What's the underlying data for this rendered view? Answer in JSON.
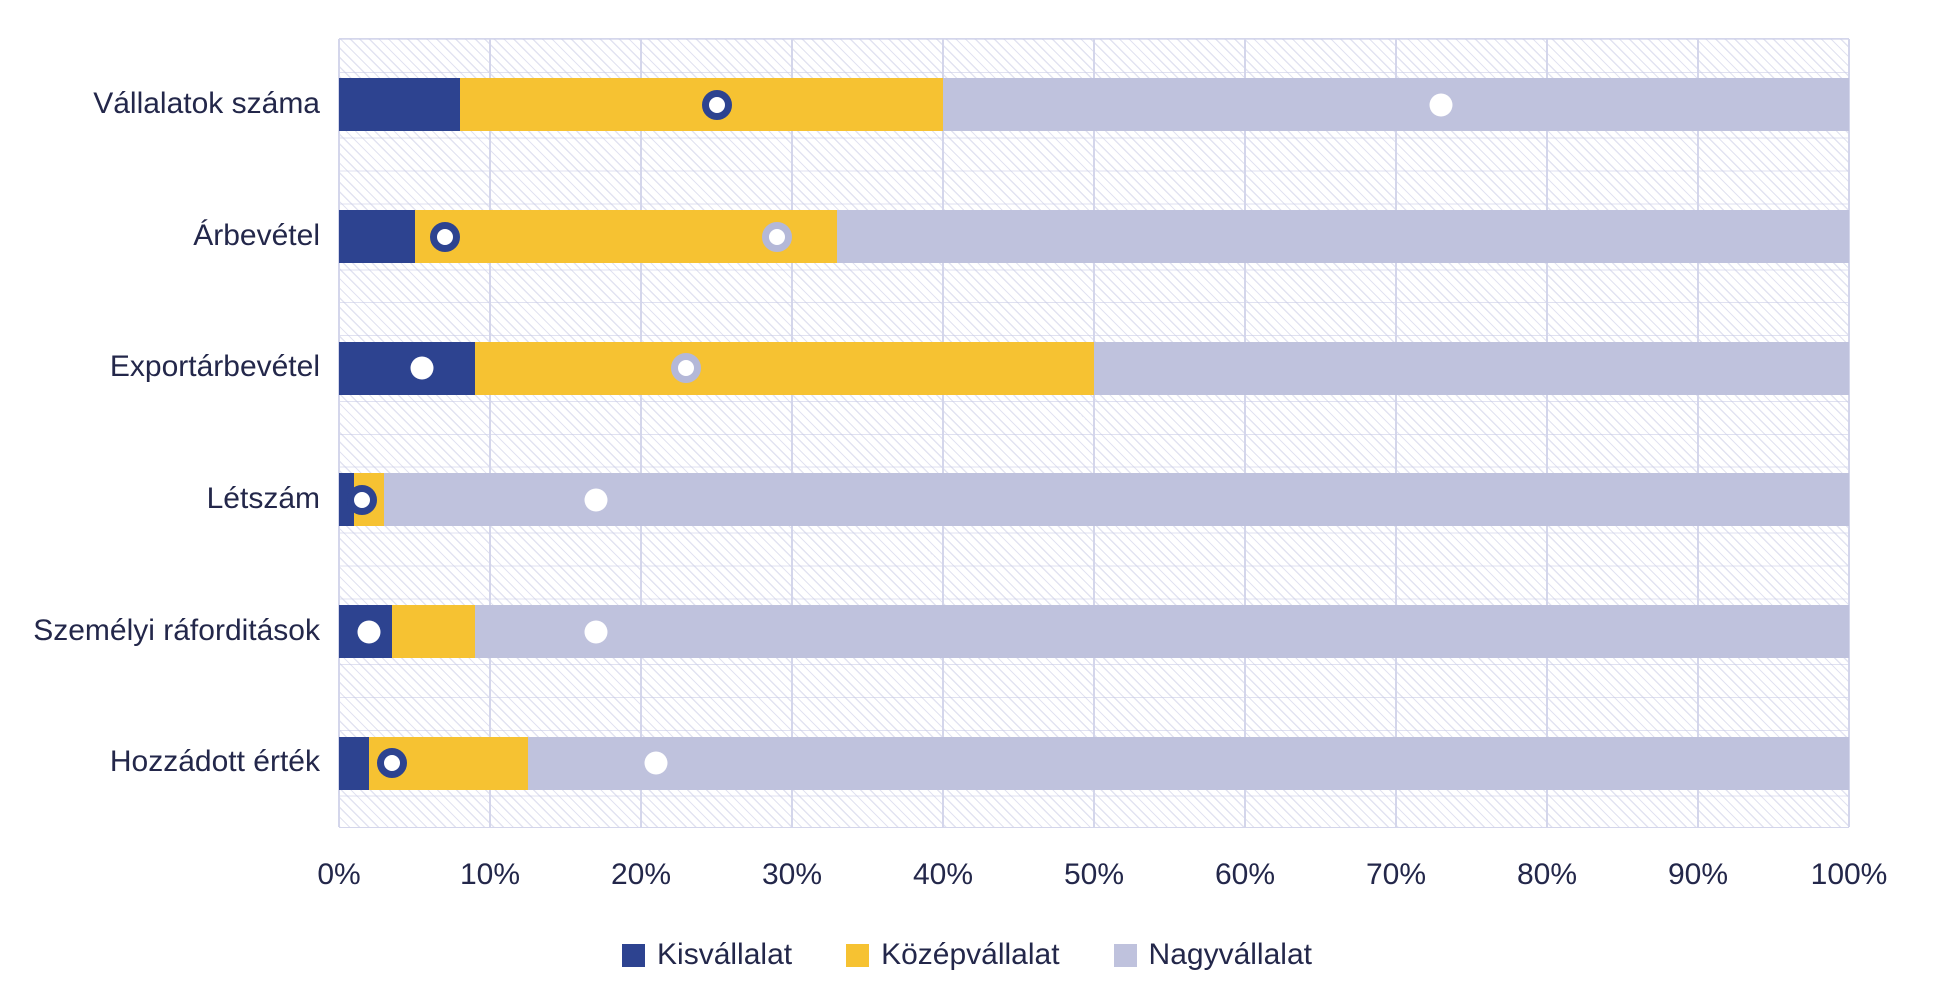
{
  "colors": {
    "small": "#2d4390",
    "medium": "#f6c232",
    "large": "#bfc2dd",
    "gridline": "#d4d6eb",
    "text": "#23274a",
    "marker_fill": "#ffffff",
    "marker_ring_navy": "#2d4390",
    "marker_ring_lavender": "#b4b8d8"
  },
  "chart_data": {
    "type": "bar",
    "orientation": "horizontal",
    "stacked": true,
    "unit": "%",
    "categories": [
      "Vállalatok száma",
      "Árbevétel",
      "Exportárbevétel",
      "Létszám",
      "Személyi ráforditások",
      "Hozzádott érték"
    ],
    "series": [
      {
        "name": "Kisvállalat",
        "color": "#2d4390",
        "values": [
          8,
          5,
          9,
          1,
          3.5,
          2
        ]
      },
      {
        "name": "Középvállalat",
        "color": "#f6c232",
        "values": [
          32,
          28,
          41,
          2,
          5.5,
          10.5
        ]
      },
      {
        "name": "Nagyvállalat",
        "color": "#bfc2dd",
        "values": [
          60,
          67,
          50,
          97,
          91,
          87.5
        ]
      }
    ],
    "markers": [
      [
        {
          "value": 25,
          "style": "navy-ring"
        },
        {
          "value": 73,
          "style": "plain"
        }
      ],
      [
        {
          "value": 7,
          "style": "navy-ring"
        },
        {
          "value": 29,
          "style": "lavender-ring"
        }
      ],
      [
        {
          "value": 5.5,
          "style": "plain"
        },
        {
          "value": 23,
          "style": "lavender-ring"
        }
      ],
      [
        {
          "value": 1.5,
          "style": "navy-ring"
        },
        {
          "value": 17,
          "style": "plain"
        }
      ],
      [
        {
          "value": 2,
          "style": "plain"
        },
        {
          "value": 17,
          "style": "plain"
        }
      ],
      [
        {
          "value": 3.5,
          "style": "navy-ring"
        },
        {
          "value": 21,
          "style": "plain"
        }
      ]
    ],
    "x_axis": {
      "min": 0,
      "max": 100,
      "ticks": [
        "0%",
        "10%",
        "20%",
        "30%",
        "40%",
        "50%",
        "60%",
        "70%",
        "80%",
        "90%",
        "100%"
      ],
      "grid": true
    },
    "legend": {
      "position": "bottom",
      "entries": [
        "Kisvállalat",
        "Középvállalat",
        "Nagyvállalat"
      ]
    }
  }
}
